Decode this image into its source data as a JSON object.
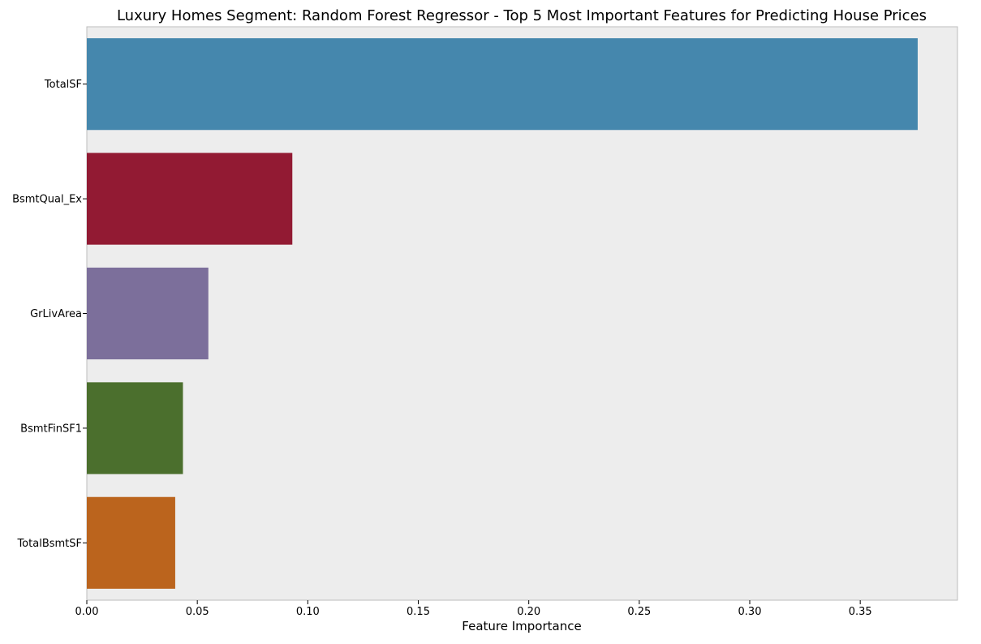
{
  "chart_data": {
    "type": "bar",
    "orientation": "horizontal",
    "title": "Luxury Homes Segment: Random Forest Regressor - Top 5 Most Important Features for Predicting House Prices",
    "xlabel": "Feature Importance",
    "ylabel": "",
    "categories": [
      "TotalSF",
      "BsmtQual_Ex",
      "GrLivArea",
      "BsmtFinSF1",
      "TotalBsmtSF"
    ],
    "values": [
      0.376,
      0.093,
      0.055,
      0.0435,
      0.04
    ],
    "colors": [
      "#4587ad",
      "#921a33",
      "#7c6f9b",
      "#4b6f2d",
      "#bb641d"
    ],
    "xlim": [
      0,
      0.394
    ],
    "xticks": [
      0.0,
      0.05,
      0.1,
      0.15,
      0.2,
      0.25,
      0.3,
      0.35
    ],
    "xtick_labels": [
      "0.00",
      "0.05",
      "0.10",
      "0.15",
      "0.20",
      "0.25",
      "0.30",
      "0.35"
    ],
    "grid": false,
    "legend": "none",
    "background": "#ededed"
  }
}
